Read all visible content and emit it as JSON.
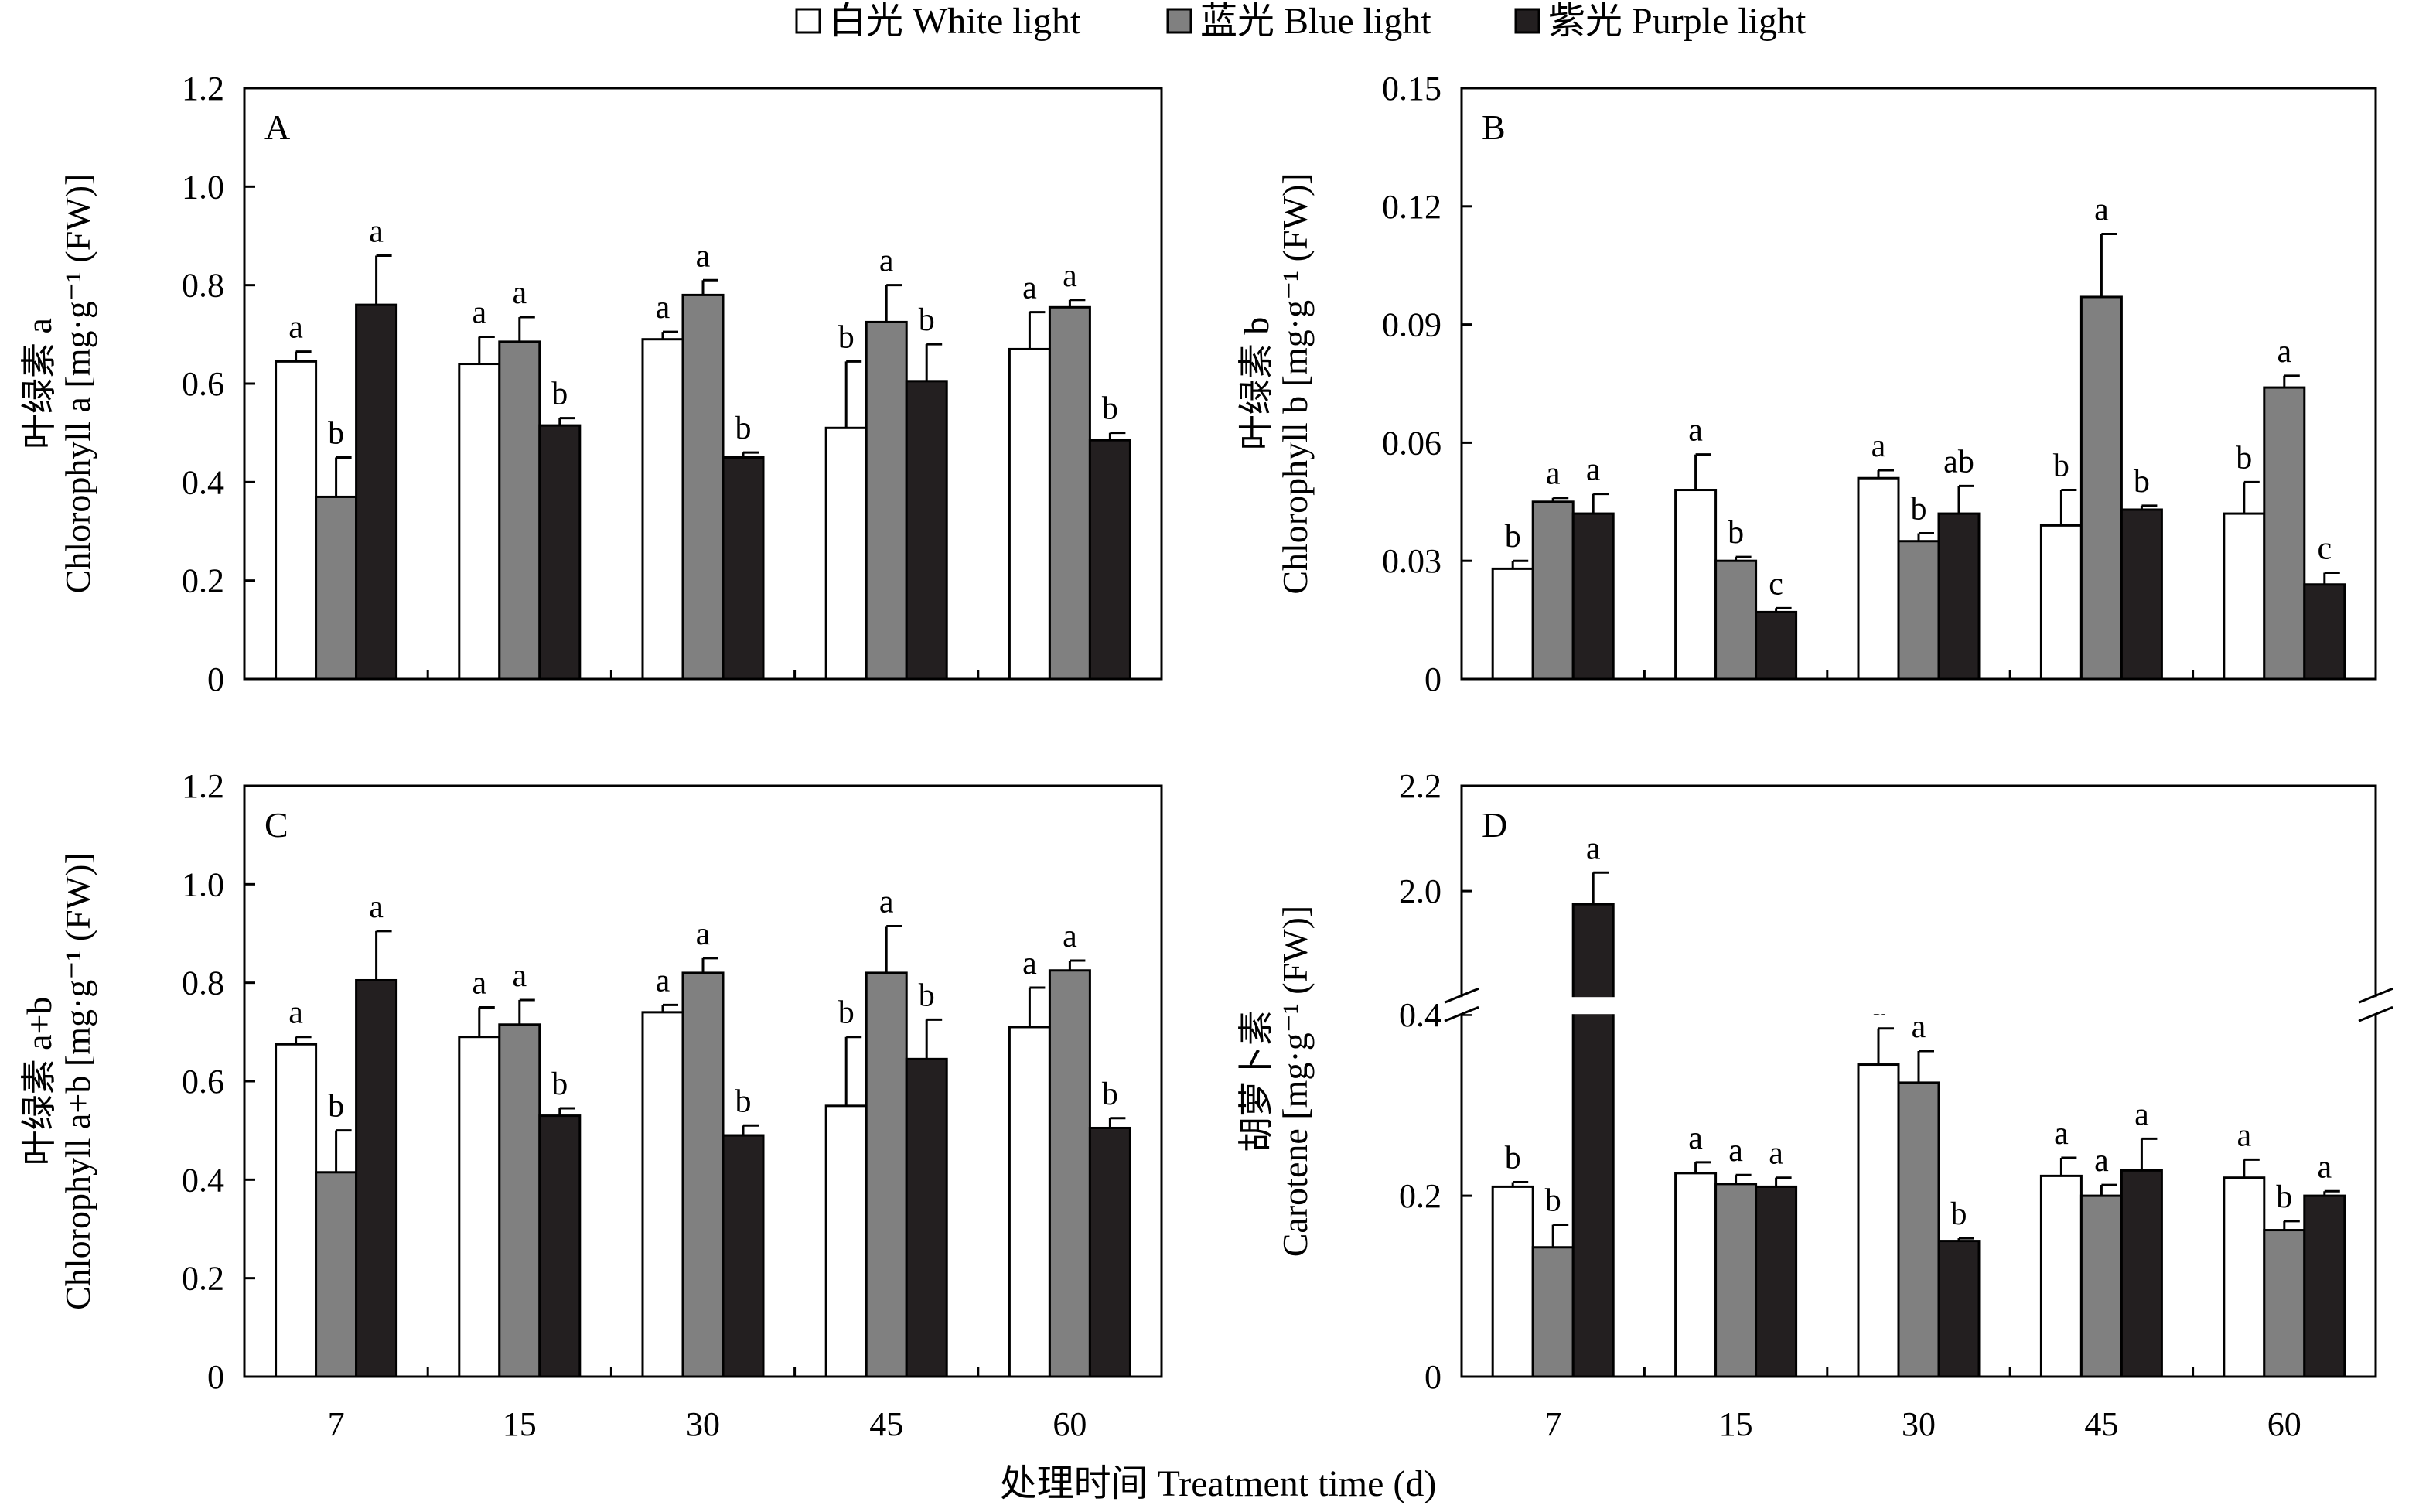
{
  "legend": {
    "items": [
      {
        "label": "白光 White light",
        "color": "#ffffff"
      },
      {
        "label": "蓝光 Blue light",
        "color": "#808080"
      },
      {
        "label": "紫光 Purple light",
        "color": "#231f20"
      }
    ]
  },
  "xlabel": "处理时间 Treatment time (d)",
  "chart_data": [
    {
      "type": "bar",
      "panel": "A",
      "ylabel_cn": "叶绿素 a",
      "ylabel_en": "Chlorophyll a [mg·g⁻¹ (FW)]",
      "categories": [
        "7",
        "15",
        "30",
        "45",
        "60"
      ],
      "ylim": [
        0,
        1.2
      ],
      "yticks": [
        "0",
        "0.2",
        "0.4",
        "0.6",
        "0.8",
        "1.0",
        "1.2"
      ],
      "ytick_values": [
        0,
        0.2,
        0.4,
        0.6,
        0.8,
        1.0,
        1.2
      ],
      "series": [
        {
          "name": "白光 White light",
          "values": [
            0.645,
            0.64,
            0.69,
            0.51,
            0.67
          ],
          "errors": [
            0.02,
            0.055,
            0.015,
            0.135,
            0.075
          ],
          "letters": [
            "a",
            "a",
            "a",
            "b",
            "a"
          ]
        },
        {
          "name": "蓝光 Blue light",
          "values": [
            0.37,
            0.685,
            0.78,
            0.725,
            0.755
          ],
          "errors": [
            0.08,
            0.05,
            0.03,
            0.075,
            0.015
          ],
          "letters": [
            "b",
            "a",
            "a",
            "a",
            "a"
          ]
        },
        {
          "name": "紫光 Purple light",
          "values": [
            0.76,
            0.515,
            0.45,
            0.605,
            0.485
          ],
          "errors": [
            0.1,
            0.015,
            0.01,
            0.075,
            0.015
          ],
          "letters": [
            "a",
            "b",
            "b",
            "b",
            "b"
          ]
        }
      ]
    },
    {
      "type": "bar",
      "panel": "B",
      "ylabel_cn": "叶绿素 b",
      "ylabel_en": "Chlorophyll b [mg·g⁻¹ (FW)]",
      "categories": [
        "7",
        "15",
        "30",
        "45",
        "60"
      ],
      "ylim": [
        0,
        0.15
      ],
      "yticks": [
        "0",
        "0.03",
        "0.06",
        "0.09",
        "0.12",
        "0.15"
      ],
      "ytick_values": [
        0,
        0.03,
        0.06,
        0.09,
        0.12,
        0.15
      ],
      "series": [
        {
          "name": "白光 White light",
          "values": [
            0.028,
            0.048,
            0.051,
            0.039,
            0.042
          ],
          "errors": [
            0.002,
            0.009,
            0.002,
            0.009,
            0.008
          ],
          "letters": [
            "b",
            "a",
            "a",
            "b",
            "b"
          ]
        },
        {
          "name": "蓝光 Blue light",
          "values": [
            0.045,
            0.03,
            0.035,
            0.097,
            0.074
          ],
          "errors": [
            0.001,
            0.001,
            0.002,
            0.016,
            0.003
          ],
          "letters": [
            "a",
            "b",
            "b",
            "a",
            "a"
          ]
        },
        {
          "name": "紫光 Purple light",
          "values": [
            0.042,
            0.017,
            0.042,
            0.043,
            0.024
          ],
          "errors": [
            0.005,
            0.001,
            0.007,
            0.001,
            0.003
          ],
          "letters": [
            "a",
            "c",
            "ab",
            "b",
            "c"
          ]
        }
      ]
    },
    {
      "type": "bar",
      "panel": "C",
      "ylabel_cn": "叶绿素 a+b",
      "ylabel_en": "Chlorophyll a+b [mg·g⁻¹ (FW)]",
      "categories": [
        "7",
        "15",
        "30",
        "45",
        "60"
      ],
      "ylim": [
        0,
        1.2
      ],
      "yticks": [
        "0",
        "0.2",
        "0.4",
        "0.6",
        "0.8",
        "1.0",
        "1.2"
      ],
      "ytick_values": [
        0,
        0.2,
        0.4,
        0.6,
        0.8,
        1.0,
        1.2
      ],
      "series": [
        {
          "name": "白光 White light",
          "values": [
            0.675,
            0.69,
            0.74,
            0.55,
            0.71
          ],
          "errors": [
            0.015,
            0.06,
            0.015,
            0.14,
            0.08
          ],
          "letters": [
            "a",
            "a",
            "a",
            "b",
            "a"
          ]
        },
        {
          "name": "蓝光 Blue light",
          "values": [
            0.415,
            0.715,
            0.82,
            0.82,
            0.825
          ],
          "errors": [
            0.085,
            0.05,
            0.03,
            0.095,
            0.02
          ],
          "letters": [
            "b",
            "a",
            "a",
            "a",
            "a"
          ]
        },
        {
          "name": "紫光 Purple light",
          "values": [
            0.805,
            0.53,
            0.49,
            0.645,
            0.505
          ],
          "errors": [
            0.1,
            0.015,
            0.02,
            0.08,
            0.02
          ],
          "letters": [
            "a",
            "b",
            "b",
            "b",
            "b"
          ]
        }
      ]
    },
    {
      "type": "bar",
      "panel": "D",
      "ylabel_cn": "胡萝卜素",
      "ylabel_en": "Carotene [mg·g⁻¹ (FW)]",
      "categories": [
        "7",
        "15",
        "30",
        "45",
        "60"
      ],
      "y_axis_break": {
        "from": 0.4,
        "to": 1.8
      },
      "yticks": [
        "0",
        "0.2",
        "0.4",
        "2.0",
        "2.2"
      ],
      "ytick_values": [
        0,
        0.2,
        0.4,
        2.0,
        2.2
      ],
      "series": [
        {
          "name": "白光 White light",
          "values": [
            0.21,
            0.225,
            0.345,
            0.222,
            0.22
          ],
          "errors": [
            0.005,
            0.012,
            0.04,
            0.02,
            0.02
          ],
          "letters": [
            "b",
            "a",
            "a",
            "a",
            "a"
          ]
        },
        {
          "name": "蓝光 Blue light",
          "values": [
            0.143,
            0.213,
            0.325,
            0.2,
            0.162
          ],
          "errors": [
            0.025,
            0.01,
            0.035,
            0.012,
            0.01
          ],
          "letters": [
            "b",
            "a",
            "a",
            "a",
            "b"
          ]
        },
        {
          "name": "紫光 Purple light",
          "values": [
            1.975,
            0.21,
            0.15,
            0.228,
            0.2
          ],
          "errors": [
            0.06,
            0.01,
            0.003,
            0.035,
            0.005
          ],
          "letters": [
            "a",
            "a",
            "b",
            "a",
            "a"
          ]
        }
      ]
    }
  ]
}
